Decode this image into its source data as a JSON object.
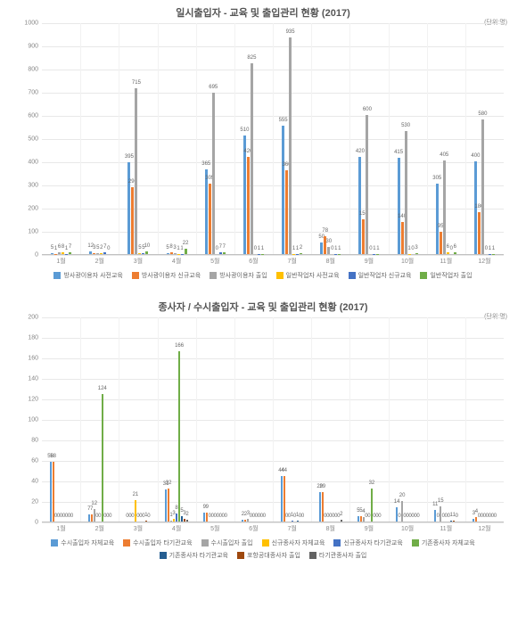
{
  "chart1": {
    "type": "bar",
    "title": "일시출입자 -  교육 및 출입관리 현황 (2017)",
    "unit": "(단위:명)",
    "ylim": [
      0,
      1000
    ],
    "ytick_step": 100,
    "background_color": "#ffffff",
    "grid_color": "#e8e8e8",
    "categories": [
      "1월",
      "2월",
      "3월",
      "4월",
      "5월",
      "6월",
      "7월",
      "8월",
      "9월",
      "10월",
      "11월",
      "12월"
    ],
    "series": [
      {
        "label": "방사광이용자 사전교육",
        "color": "#5b9bd5"
      },
      {
        "label": "방사광이용자 신규교육",
        "color": "#ed7d31"
      },
      {
        "label": "방사광이용자 출입",
        "color": "#a5a5a5"
      },
      {
        "label": "일반작업자 사전교육",
        "color": "#ffc000"
      },
      {
        "label": "일반작업자 신규교육",
        "color": "#4472c4"
      },
      {
        "label": "일반작업자 출입",
        "color": "#70ad47"
      }
    ],
    "label_fontsize": 6,
    "data": [
      [
        5,
        1,
        6,
        8,
        1,
        7
      ],
      [
        12,
        3,
        5,
        2,
        7,
        0
      ],
      [
        395,
        290,
        715,
        5,
        5,
        10
      ],
      [
        5,
        8,
        3,
        1,
        1,
        22
      ],
      [
        365,
        305,
        695,
        0,
        7,
        7
      ],
      [
        510,
        420,
        825,
        0,
        1,
        1
      ],
      [
        555,
        360,
        935,
        1,
        1,
        2
      ],
      [
        50,
        78,
        30,
        0,
        1,
        1
      ],
      [
        420,
        150,
        600,
        0,
        1,
        1
      ],
      [
        415,
        140,
        530,
        1,
        0,
        3
      ],
      [
        305,
        95,
        405,
        6,
        0,
        6
      ],
      [
        400,
        180,
        580,
        0,
        1,
        1
      ]
    ]
  },
  "chart2": {
    "type": "bar",
    "title": "종사자 / 수시출입자 - 교육 및 출입관리 현황 (2017)",
    "unit": "(단위:명)",
    "ylim": [
      0,
      200
    ],
    "ytick_step": 20,
    "background_color": "#ffffff",
    "grid_color": "#e8e8e8",
    "categories": [
      "1월",
      "2월",
      "3월",
      "4월",
      "5월",
      "6월",
      "7월",
      "8월",
      "9월",
      "10월",
      "11월",
      "12월"
    ],
    "series": [
      {
        "label": "수시출입자 자체교육",
        "color": "#5b9bd5"
      },
      {
        "label": "수시출입자 타기관교육",
        "color": "#ed7d31"
      },
      {
        "label": "수시출입자 출입",
        "color": "#a5a5a5"
      },
      {
        "label": "신규종사자 자체교육",
        "color": "#ffc000"
      },
      {
        "label": "신규종사자 타기관교육",
        "color": "#4472c4"
      },
      {
        "label": "기존종사자 자체교육",
        "color": "#70ad47"
      },
      {
        "label": "기존종사자 타기관교육",
        "color": "#255e91"
      },
      {
        "label": "포항공대종사자 출입",
        "color": "#9e480e"
      },
      {
        "label": "타기관종사자 출입",
        "color": "#636363"
      }
    ],
    "label_fontsize": 6,
    "data": [
      [
        58,
        58,
        0,
        0,
        0,
        0,
        0,
        0,
        0
      ],
      [
        7,
        7,
        12,
        0,
        0,
        124,
        0,
        0,
        0
      ],
      [
        0,
        0,
        0,
        21,
        0,
        0,
        0,
        1,
        0
      ],
      [
        31,
        32,
        1,
        3,
        8,
        166,
        5,
        3,
        2
      ],
      [
        9,
        9,
        0,
        0,
        0,
        0,
        0,
        0,
        0
      ],
      [
        2,
        2,
        3,
        0,
        0,
        0,
        0,
        0,
        0
      ],
      [
        44,
        44,
        0,
        0,
        1,
        0,
        1,
        0,
        0
      ],
      [
        29,
        29,
        0,
        0,
        0,
        0,
        0,
        0,
        2
      ],
      [
        5,
        5,
        4,
        0,
        0,
        32,
        0,
        0,
        0
      ],
      [
        14,
        0,
        20,
        0,
        0,
        0,
        0,
        0,
        0
      ],
      [
        11,
        0,
        15,
        0,
        0,
        0,
        1,
        1,
        0
      ],
      [
        3,
        4,
        0,
        0,
        0,
        0,
        0,
        0,
        0
      ]
    ]
  }
}
